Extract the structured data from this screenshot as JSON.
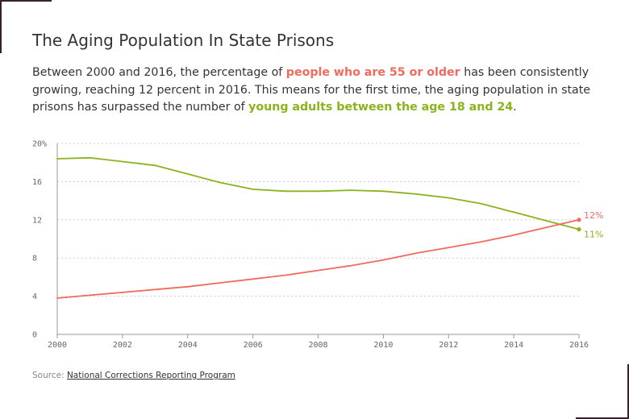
{
  "header": {
    "title": "The Aging Population In State Prisons",
    "desc_part1": "Between 2000 and 2016, the percentage of ",
    "desc_highlight_older": "people who are 55 or older",
    "desc_part2": " has been consistently growing, reaching 12 percent in 2016. This means for the first time, the aging population in state prisons has surpassed the number of ",
    "desc_highlight_young": "young adults between the age 18 and 24",
    "desc_part3": "."
  },
  "source": {
    "prefix": "Source: ",
    "link_text": "National Corrections Reporting Program"
  },
  "colors": {
    "older": "#ee6b5e",
    "young": "#8ab31c",
    "grid": "#cccccc",
    "axis": "#999999",
    "tick_text": "#666666"
  },
  "chart_data": {
    "type": "line",
    "title": "The Aging Population In State Prisons",
    "xlabel": "",
    "ylabel": "",
    "x": [
      2000,
      2001,
      2002,
      2003,
      2004,
      2005,
      2006,
      2007,
      2008,
      2009,
      2010,
      2011,
      2012,
      2013,
      2014,
      2015,
      2016
    ],
    "xlim": [
      2000,
      2016
    ],
    "ylim": [
      0,
      20
    ],
    "x_ticks": [
      "2000",
      "2002",
      "2004",
      "2006",
      "2008",
      "2010",
      "2012",
      "2014",
      "2016"
    ],
    "y_ticks": [
      "0",
      "4",
      "8",
      "12",
      "16",
      "20%"
    ],
    "y_tick_values": [
      0,
      4,
      8,
      12,
      16,
      20
    ],
    "grid": true,
    "series": [
      {
        "name": "young adults between the age 18 and 24",
        "key": "young",
        "values": [
          18.4,
          18.5,
          18.1,
          17.7,
          16.8,
          15.9,
          15.2,
          15.0,
          15.0,
          15.1,
          15.0,
          14.7,
          14.3,
          13.7,
          12.8,
          11.9,
          11.0
        ],
        "end_label": "11%"
      },
      {
        "name": "people who are 55 or older",
        "key": "older",
        "values": [
          3.8,
          4.1,
          4.4,
          4.7,
          5.0,
          5.4,
          5.8,
          6.2,
          6.7,
          7.2,
          7.8,
          8.5,
          9.1,
          9.7,
          10.4,
          11.2,
          12.0
        ],
        "end_label": "12%"
      }
    ]
  }
}
